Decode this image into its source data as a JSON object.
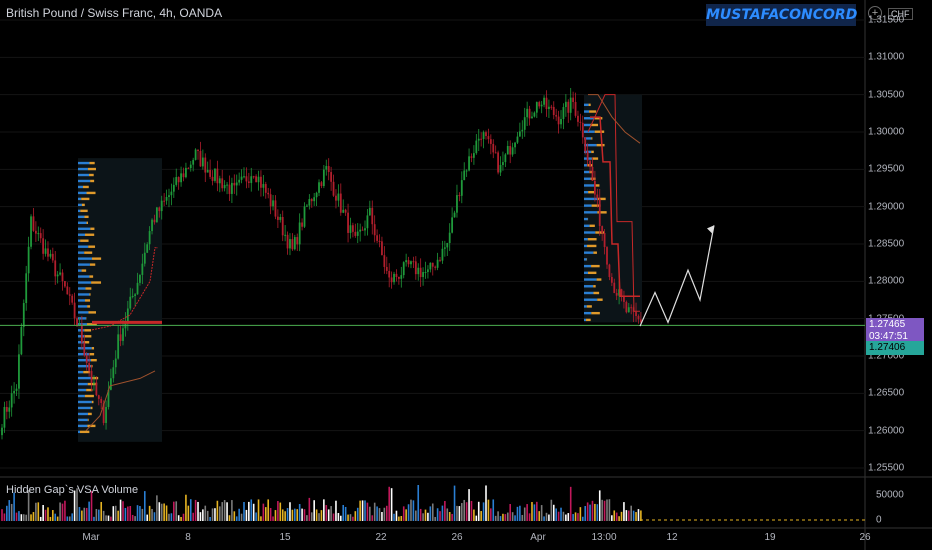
{
  "header": {
    "title": "British Pound / Swiss Franc, 4h, OANDA",
    "watermark": "MUSTAFACONCORD",
    "currency": "CHF"
  },
  "indicator": {
    "name": "Hidden Gap`s VSA Volume",
    "vol_ticks": [
      "50000",
      "0"
    ]
  },
  "current": {
    "price": "1.27465",
    "countdown": "03:47:51",
    "line_price": "1.27406"
  },
  "colors": {
    "up": "#1f9a3b",
    "down": "#b21f2d",
    "profile_blue": "#2a7fd4",
    "profile_orange": "#e09a2b",
    "hline": "#4caf50",
    "tag_purple": "#7e57c2",
    "tag_green": "#26a69a"
  },
  "chart_data": {
    "type": "candlestick",
    "title": "British Pound / Swiss Franc, 4h, OANDA",
    "ylabel": "CHF",
    "ylim": [
      1.255,
      1.315
    ],
    "y_ticks": [
      "1.31500",
      "1.31000",
      "1.30500",
      "1.30000",
      "1.29500",
      "1.29000",
      "1.28500",
      "1.28000",
      "1.27500",
      "1.27000",
      "1.26500",
      "1.26000",
      "1.25500"
    ],
    "x_ticks": [
      "Mar",
      "8",
      "15",
      "22",
      "26",
      "Apr",
      "13:00",
      "12",
      "19",
      "26"
    ],
    "horizontal_line": 1.2741,
    "anchors": [
      {
        "i": 0,
        "p": 1.2615
      },
      {
        "i": 6,
        "p": 1.266
      },
      {
        "i": 12,
        "p": 1.288
      },
      {
        "i": 18,
        "p": 1.284
      },
      {
        "i": 26,
        "p": 1.279
      },
      {
        "i": 32,
        "p": 1.2735
      },
      {
        "i": 38,
        "p": 1.2655
      },
      {
        "i": 42,
        "p": 1.262
      },
      {
        "i": 48,
        "p": 1.272
      },
      {
        "i": 56,
        "p": 1.28
      },
      {
        "i": 62,
        "p": 1.288
      },
      {
        "i": 72,
        "p": 1.293
      },
      {
        "i": 80,
        "p": 1.297
      },
      {
        "i": 88,
        "p": 1.294
      },
      {
        "i": 96,
        "p": 1.292
      },
      {
        "i": 104,
        "p": 1.295
      },
      {
        "i": 112,
        "p": 1.29
      },
      {
        "i": 120,
        "p": 1.284
      },
      {
        "i": 126,
        "p": 1.29
      },
      {
        "i": 134,
        "p": 1.295
      },
      {
        "i": 140,
        "p": 1.29
      },
      {
        "i": 146,
        "p": 1.285
      },
      {
        "i": 152,
        "p": 1.289
      },
      {
        "i": 160,
        "p": 1.28
      },
      {
        "i": 168,
        "p": 1.282
      },
      {
        "i": 176,
        "p": 1.281
      },
      {
        "i": 184,
        "p": 1.285
      },
      {
        "i": 190,
        "p": 1.294
      },
      {
        "i": 198,
        "p": 1.3
      },
      {
        "i": 206,
        "p": 1.295
      },
      {
        "i": 214,
        "p": 1.301
      },
      {
        "i": 222,
        "p": 1.304
      },
      {
        "i": 230,
        "p": 1.302
      },
      {
        "i": 236,
        "p": 1.304
      },
      {
        "i": 240,
        "p": 1.3
      },
      {
        "i": 246,
        "p": 1.29
      },
      {
        "i": 252,
        "p": 1.28
      },
      {
        "i": 258,
        "p": 1.276
      },
      {
        "i": 264,
        "p": 1.2745
      }
    ],
    "projection": [
      1.274,
      1.2785,
      1.2745,
      1.2815,
      1.2775,
      1.2875
    ]
  }
}
